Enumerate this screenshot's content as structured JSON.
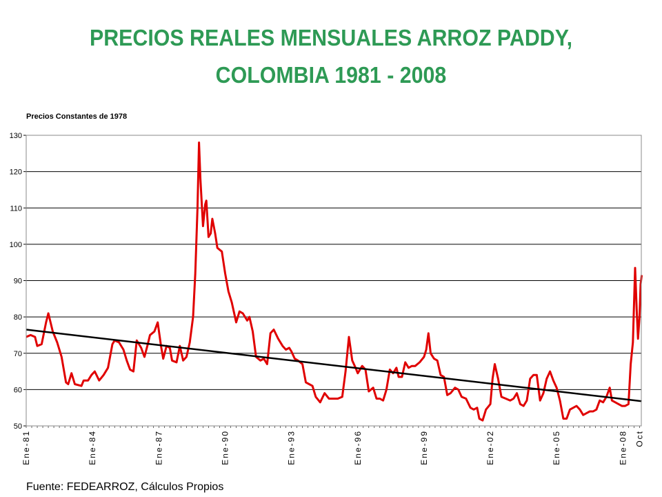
{
  "title_line1": "PRECIOS REALES MENSUALES ARROZ PADDY,",
  "title_line2": "COLOMBIA 1981 - 2008",
  "source": "Fuente: FEDEARROZ, Cálculos Propios",
  "chart_data": {
    "type": "line",
    "ylabel": "Precios Constantes de 1978",
    "ylim": [
      50,
      130
    ],
    "yticks": [
      50,
      60,
      70,
      80,
      90,
      100,
      110,
      120,
      130
    ],
    "grid": true,
    "xlim": [
      1981.0,
      2008.83
    ],
    "xticks": [
      {
        "x": 1981.0,
        "label": "Ene-81"
      },
      {
        "x": 1984.0,
        "label": "Ene-84"
      },
      {
        "x": 1987.0,
        "label": "Ene-87"
      },
      {
        "x": 1990.0,
        "label": "Ene-90"
      },
      {
        "x": 1993.0,
        "label": "Ene-93"
      },
      {
        "x": 1996.0,
        "label": "Ene-96"
      },
      {
        "x": 1999.0,
        "label": "Ene-99"
      },
      {
        "x": 2002.0,
        "label": "Ene-02"
      },
      {
        "x": 2005.0,
        "label": "Ene-05"
      },
      {
        "x": 2008.0,
        "label": "Ene-08"
      },
      {
        "x": 2008.75,
        "label": "Oct"
      }
    ],
    "series": [
      {
        "color": "#e00000",
        "points": [
          [
            1981.0,
            74.5
          ],
          [
            1981.2,
            75.0
          ],
          [
            1981.4,
            74.5
          ],
          [
            1981.5,
            72.0
          ],
          [
            1981.7,
            72.5
          ],
          [
            1981.9,
            78.5
          ],
          [
            1982.0,
            81.0
          ],
          [
            1982.2,
            76.0
          ],
          [
            1982.4,
            73.0
          ],
          [
            1982.6,
            69.0
          ],
          [
            1982.8,
            62.0
          ],
          [
            1982.9,
            61.5
          ],
          [
            1983.05,
            64.5
          ],
          [
            1983.2,
            61.5
          ],
          [
            1983.5,
            61.0
          ],
          [
            1983.6,
            62.5
          ],
          [
            1983.8,
            62.5
          ],
          [
            1983.95,
            64.0
          ],
          [
            1984.1,
            65.0
          ],
          [
            1984.3,
            62.5
          ],
          [
            1984.5,
            64.0
          ],
          [
            1984.7,
            66.0
          ],
          [
            1984.9,
            72.5
          ],
          [
            1985.0,
            73.5
          ],
          [
            1985.2,
            73.0
          ],
          [
            1985.4,
            71.0
          ],
          [
            1985.55,
            68.0
          ],
          [
            1985.7,
            65.5
          ],
          [
            1985.85,
            65.0
          ],
          [
            1986.0,
            73.5
          ],
          [
            1986.2,
            71.5
          ],
          [
            1986.35,
            69.0
          ],
          [
            1986.5,
            72.5
          ],
          [
            1986.6,
            75.0
          ],
          [
            1986.8,
            76.0
          ],
          [
            1986.95,
            78.5
          ],
          [
            1987.1,
            72.0
          ],
          [
            1987.2,
            68.5
          ],
          [
            1987.35,
            72.0
          ],
          [
            1987.5,
            71.5
          ],
          [
            1987.6,
            68.0
          ],
          [
            1987.8,
            67.5
          ],
          [
            1987.95,
            72.0
          ],
          [
            1988.1,
            68.0
          ],
          [
            1988.25,
            69.0
          ],
          [
            1988.4,
            73.0
          ],
          [
            1988.55,
            80.0
          ],
          [
            1988.65,
            92.0
          ],
          [
            1988.75,
            110.0
          ],
          [
            1988.82,
            128.0
          ],
          [
            1988.88,
            118.0
          ],
          [
            1989.0,
            105.0
          ],
          [
            1989.1,
            111.0
          ],
          [
            1989.15,
            112.0
          ],
          [
            1989.25,
            102.0
          ],
          [
            1989.35,
            103.0
          ],
          [
            1989.42,
            107.0
          ],
          [
            1989.55,
            103.0
          ],
          [
            1989.65,
            99.0
          ],
          [
            1989.85,
            98.0
          ],
          [
            1990.0,
            92.0
          ],
          [
            1990.15,
            87.0
          ],
          [
            1990.3,
            84.0
          ],
          [
            1990.5,
            78.5
          ],
          [
            1990.65,
            81.5
          ],
          [
            1990.8,
            81.0
          ],
          [
            1991.0,
            79.0
          ],
          [
            1991.1,
            80.0
          ],
          [
            1991.25,
            76.0
          ],
          [
            1991.4,
            69.0
          ],
          [
            1991.6,
            68.0
          ],
          [
            1991.75,
            68.5
          ],
          [
            1991.9,
            67.0
          ],
          [
            1992.05,
            75.5
          ],
          [
            1992.2,
            76.5
          ],
          [
            1992.4,
            74.0
          ],
          [
            1992.6,
            72.0
          ],
          [
            1992.75,
            71.0
          ],
          [
            1992.9,
            71.5
          ],
          [
            1993.0,
            70.5
          ],
          [
            1993.15,
            68.5
          ],
          [
            1993.3,
            68.0
          ],
          [
            1993.5,
            67.0
          ],
          [
            1993.65,
            62.0
          ],
          [
            1993.8,
            61.5
          ],
          [
            1993.95,
            61.0
          ],
          [
            1994.1,
            58.0
          ],
          [
            1994.3,
            56.5
          ],
          [
            1994.5,
            59.0
          ],
          [
            1994.7,
            57.5
          ],
          [
            1994.9,
            57.5
          ],
          [
            1995.1,
            57.5
          ],
          [
            1995.3,
            58.0
          ],
          [
            1995.45,
            65.0
          ],
          [
            1995.6,
            74.5
          ],
          [
            1995.75,
            68.0
          ],
          [
            1995.9,
            66.0
          ],
          [
            1996.0,
            64.5
          ],
          [
            1996.2,
            66.5
          ],
          [
            1996.35,
            65.5
          ],
          [
            1996.5,
            59.5
          ],
          [
            1996.7,
            60.5
          ],
          [
            1996.85,
            57.5
          ],
          [
            1997.0,
            57.5
          ],
          [
            1997.15,
            57.0
          ],
          [
            1997.3,
            60.0
          ],
          [
            1997.45,
            65.5
          ],
          [
            1997.6,
            64.5
          ],
          [
            1997.75,
            66.0
          ],
          [
            1997.85,
            63.5
          ],
          [
            1998.0,
            63.5
          ],
          [
            1998.15,
            67.5
          ],
          [
            1998.3,
            66.0
          ],
          [
            1998.45,
            66.5
          ],
          [
            1998.6,
            66.5
          ],
          [
            1998.8,
            67.5
          ],
          [
            1999.0,
            69.0
          ],
          [
            1999.1,
            71.0
          ],
          [
            1999.2,
            75.5
          ],
          [
            1999.3,
            70.0
          ],
          [
            1999.45,
            68.5
          ],
          [
            1999.6,
            68.0
          ],
          [
            1999.75,
            64.0
          ],
          [
            1999.9,
            63.5
          ],
          [
            2000.05,
            58.5
          ],
          [
            2000.2,
            59.0
          ],
          [
            2000.4,
            60.5
          ],
          [
            2000.55,
            60.0
          ],
          [
            2000.7,
            58.0
          ],
          [
            2000.9,
            57.5
          ],
          [
            2001.1,
            55.0
          ],
          [
            2001.25,
            54.5
          ],
          [
            2001.4,
            55.0
          ],
          [
            2001.5,
            52.0
          ],
          [
            2001.65,
            51.5
          ],
          [
            2001.8,
            54.5
          ],
          [
            2002.0,
            56.0
          ],
          [
            2002.1,
            63.0
          ],
          [
            2002.2,
            67.0
          ],
          [
            2002.35,
            63.0
          ],
          [
            2002.5,
            58.0
          ],
          [
            2002.7,
            57.5
          ],
          [
            2002.9,
            57.0
          ],
          [
            2003.05,
            57.5
          ],
          [
            2003.2,
            59.0
          ],
          [
            2003.35,
            56.0
          ],
          [
            2003.5,
            55.5
          ],
          [
            2003.65,
            57.0
          ],
          [
            2003.8,
            63.0
          ],
          [
            2003.95,
            64.0
          ],
          [
            2004.1,
            64.0
          ],
          [
            2004.25,
            57.0
          ],
          [
            2004.4,
            59.0
          ],
          [
            2004.55,
            63.0
          ],
          [
            2004.7,
            65.0
          ],
          [
            2004.85,
            62.5
          ],
          [
            2005.0,
            60.5
          ],
          [
            2005.15,
            57.0
          ],
          [
            2005.3,
            52.0
          ],
          [
            2005.45,
            52.0
          ],
          [
            2005.6,
            54.5
          ],
          [
            2005.75,
            55.0
          ],
          [
            2005.9,
            55.5
          ],
          [
            2006.05,
            54.5
          ],
          [
            2006.2,
            53.0
          ],
          [
            2006.35,
            53.5
          ],
          [
            2006.5,
            54.0
          ],
          [
            2006.65,
            54.0
          ],
          [
            2006.8,
            54.5
          ],
          [
            2006.95,
            57.0
          ],
          [
            2007.1,
            56.5
          ],
          [
            2007.25,
            58.0
          ],
          [
            2007.4,
            60.5
          ],
          [
            2007.5,
            57.0
          ],
          [
            2007.65,
            56.5
          ],
          [
            2007.8,
            56.0
          ],
          [
            2007.95,
            55.5
          ],
          [
            2008.1,
            55.5
          ],
          [
            2008.25,
            56.0
          ],
          [
            2008.35,
            67.0
          ],
          [
            2008.45,
            73.0
          ],
          [
            2008.55,
            93.5
          ],
          [
            2008.62,
            82.0
          ],
          [
            2008.68,
            74.0
          ],
          [
            2008.75,
            80.0
          ],
          [
            2008.8,
            89.0
          ],
          [
            2008.85,
            91.5
          ]
        ]
      },
      {
        "color": "#000000",
        "points": [
          [
            1981.0,
            76.5
          ],
          [
            2008.85,
            56.8
          ]
        ]
      }
    ]
  }
}
